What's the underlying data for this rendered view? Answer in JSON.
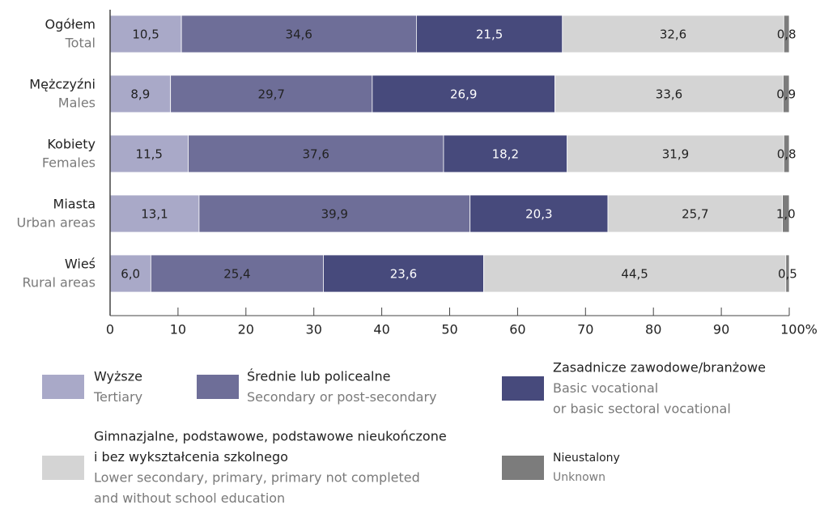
{
  "chart_data": {
    "type": "stacked-barh",
    "categories": [
      "Ogółem",
      "Mężczyźni",
      "Kobiety",
      "Miasta",
      "Wieś"
    ],
    "categories_en": [
      "Total",
      "Males",
      "Females",
      "Urban areas",
      "Rural areas"
    ],
    "series": [
      {
        "name": [
          "Wyższe"
        ],
        "name_en": [
          "Tertiary"
        ],
        "color": "#a9a9c8",
        "values": [
          10.5,
          8.9,
          11.5,
          13.1,
          6.0
        ],
        "value_labels": [
          "10,5",
          "8,9",
          "11,5",
          "13,1",
          "6,0"
        ]
      },
      {
        "name": [
          "Średnie lub policealne"
        ],
        "name_en": [
          "Secondary or post-secondary"
        ],
        "color": "#6e6e98",
        "values": [
          34.6,
          29.7,
          37.6,
          39.9,
          25.4
        ],
        "value_labels": [
          "34,6",
          "29,7",
          "37,6",
          "39,9",
          "25,4"
        ]
      },
      {
        "name": [
          "Zasadnicze zawodowe/branżowe"
        ],
        "name_en": [
          "Basic vocational",
          "or basic sectoral vocational"
        ],
        "color": "#474a7c",
        "values": [
          21.5,
          26.9,
          18.2,
          20.3,
          23.6
        ],
        "value_labels": [
          "21,5",
          "26,9",
          "18,2",
          "20,3",
          "23,6"
        ]
      },
      {
        "name": [
          "Gimnazjalne, podstawowe, podstawowe nieukończone",
          "i bez wykształcenia szkolnego"
        ],
        "name_en": [
          "Lower secondary, primary, primary not completed",
          "and without school education"
        ],
        "color": "#d4d4d4",
        "values": [
          32.6,
          33.6,
          31.9,
          25.7,
          44.5
        ],
        "value_labels": [
          "32,6",
          "33,6",
          "31,9",
          "25,7",
          "44,5"
        ]
      },
      {
        "name": [
          "Nieustalony"
        ],
        "name_en": [
          "Unknown"
        ],
        "color": "#7c7c7c",
        "values": [
          0.8,
          0.9,
          0.8,
          1.0,
          0.5
        ],
        "value_labels": [
          "0,8",
          "0,9",
          "0,8",
          "1,0",
          "0,5"
        ]
      }
    ],
    "xlim": [
      0,
      100
    ],
    "xticks": [
      0,
      10,
      20,
      30,
      40,
      50,
      60,
      70,
      80,
      90,
      {
        "value": 100,
        "label": "100%"
      }
    ]
  }
}
